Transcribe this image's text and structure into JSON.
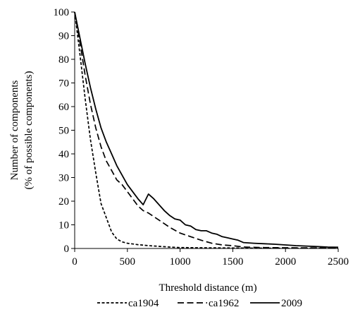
{
  "chart_data": {
    "type": "line",
    "xlabel": "Threshold distance (m)",
    "ylabel_line1": "Number of components",
    "ylabel_line2": "(% of  possible components)",
    "xlim": [
      0,
      2500
    ],
    "ylim": [
      0,
      100
    ],
    "x_ticks": [
      0,
      500,
      1000,
      1500,
      2000,
      2500
    ],
    "y_ticks": [
      0,
      10,
      20,
      30,
      40,
      50,
      60,
      70,
      80,
      90,
      100
    ],
    "grid": false,
    "legend_position": "bottom",
    "series": [
      {
        "name": "ca1904",
        "style": "dotted",
        "x": [
          0,
          50,
          100,
          150,
          200,
          250,
          300,
          350,
          400,
          450,
          500,
          600,
          700,
          800,
          900,
          1000,
          1200,
          1500,
          2000,
          2500
        ],
        "y": [
          100,
          82,
          63,
          46,
          32,
          19,
          13,
          7,
          4,
          2.8,
          2.2,
          1.6,
          1.2,
          0.9,
          0.6,
          0.4,
          0.3,
          0.2,
          0.1,
          0.1
        ]
      },
      {
        "name": "ca1962",
        "style": "dashed",
        "x": [
          0,
          50,
          100,
          150,
          200,
          250,
          300,
          350,
          400,
          450,
          500,
          550,
          600,
          650,
          700,
          800,
          900,
          1000,
          1100,
          1200,
          1300,
          1400,
          1500,
          1600,
          1800,
          2000,
          2500
        ],
        "y": [
          100,
          87,
          73,
          61,
          51,
          43,
          37,
          33,
          29,
          27,
          24,
          21,
          18,
          16,
          15,
          12,
          9,
          6.5,
          5,
          3.5,
          2.2,
          1.5,
          1.2,
          0.6,
          0.4,
          0.3,
          0.2
        ]
      },
      {
        "name": "2009",
        "style": "solid",
        "x": [
          0,
          50,
          100,
          150,
          200,
          250,
          300,
          350,
          400,
          450,
          500,
          550,
          600,
          650,
          700,
          750,
          800,
          850,
          900,
          950,
          1000,
          1050,
          1100,
          1150,
          1200,
          1250,
          1300,
          1350,
          1400,
          1450,
          1500,
          1550,
          1600,
          1700,
          1800,
          1900,
          2000,
          2100,
          2200,
          2300,
          2400,
          2500
        ],
        "y": [
          100,
          89,
          78,
          68,
          59,
          51,
          45,
          40,
          35,
          31,
          27,
          24,
          21,
          18.5,
          23,
          21,
          18.5,
          16,
          14,
          12.5,
          12,
          10,
          9.5,
          8,
          7.5,
          7.5,
          6.5,
          6,
          5,
          4.5,
          4,
          3.5,
          2.5,
          2.2,
          2,
          1.8,
          1.5,
          1.2,
          1,
          0.8,
          0.6,
          0.5
        ]
      }
    ]
  }
}
